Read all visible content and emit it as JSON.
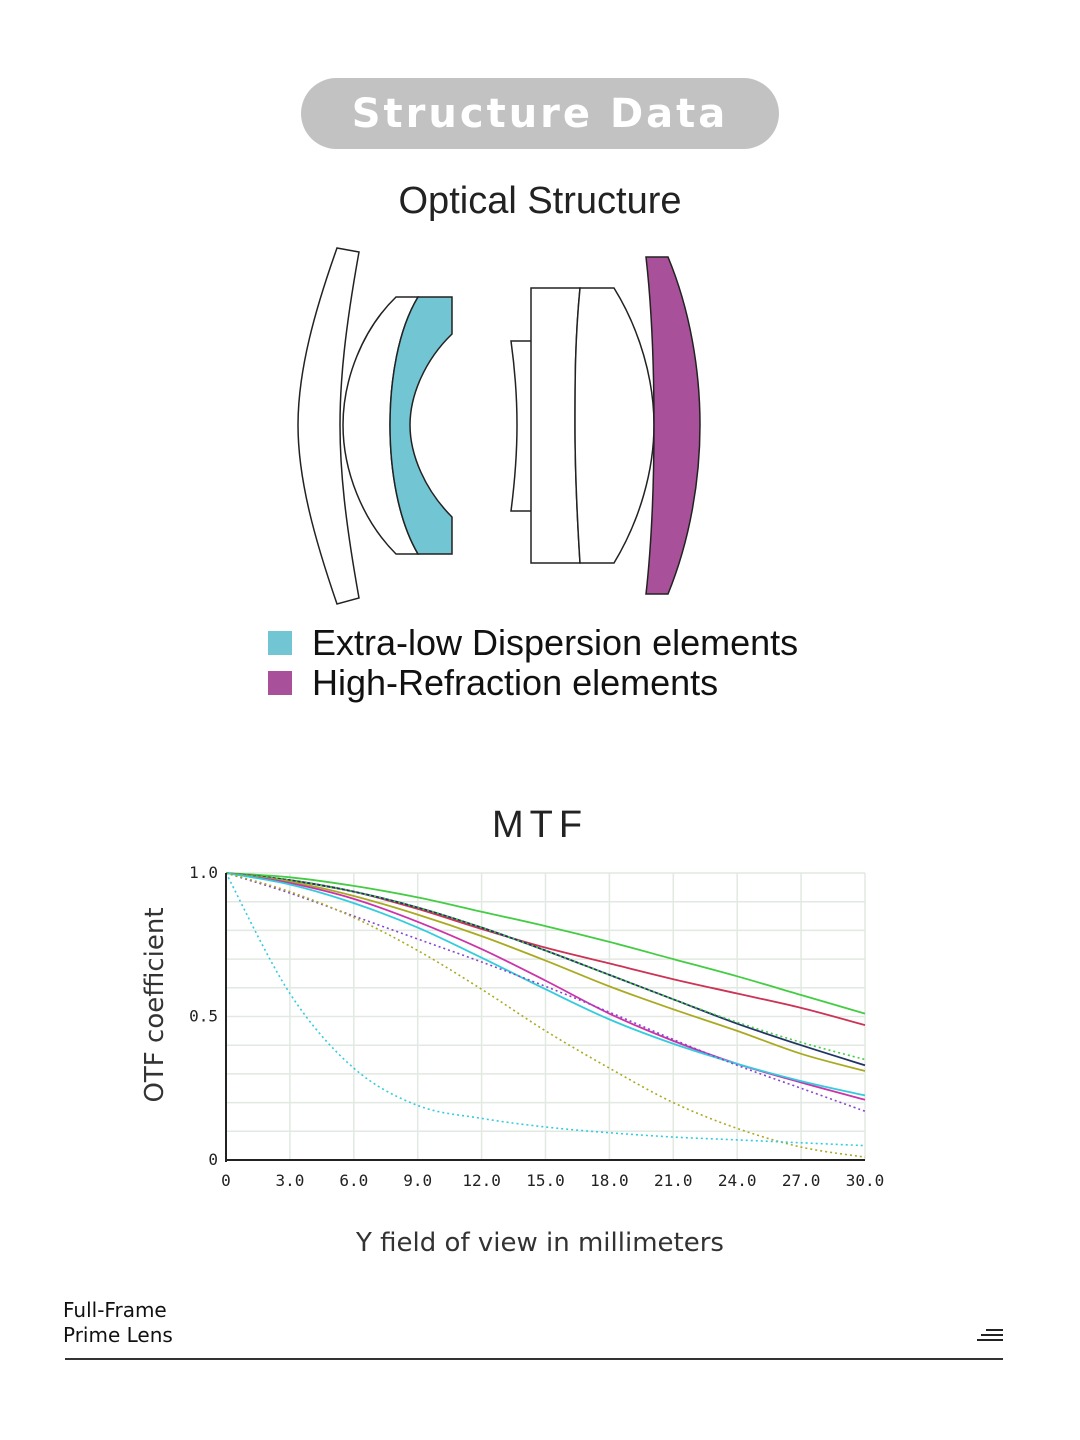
{
  "header": {
    "title": "Structure Data"
  },
  "optical": {
    "title": "Optical Structure",
    "legend": [
      {
        "label": "Extra-low Dispersion elements",
        "color": "#72c5d2"
      },
      {
        "label": "High-Refraction elements",
        "color": "#a8519a"
      }
    ]
  },
  "mtf": {
    "title": "MTF",
    "ylabel": "OTF coefficient",
    "xlabel": "Y field of view in millimeters"
  },
  "footer": {
    "line1": "Full-Frame",
    "line2": "Prime Lens",
    "icon": "menu-icon"
  },
  "chart_data": {
    "type": "line",
    "xlim": [
      0,
      30
    ],
    "ylim": [
      0,
      1
    ],
    "x_ticks": [
      "0",
      "3.0",
      "6.0",
      "9.0",
      "12.0",
      "15.0",
      "18.0",
      "21.0",
      "24.0",
      "27.0",
      "30.0"
    ],
    "y_ticks": [
      "0",
      "0.5",
      "1.0"
    ],
    "grid": true,
    "x": [
      0,
      3,
      6,
      9,
      12,
      15,
      18,
      21,
      24,
      27,
      30
    ],
    "series": [
      {
        "color": "#44cc44",
        "style": "solid",
        "values": [
          1.0,
          0.985,
          0.955,
          0.915,
          0.865,
          0.815,
          0.76,
          0.7,
          0.64,
          0.575,
          0.51
        ]
      },
      {
        "color": "#cc3355",
        "style": "solid",
        "values": [
          1.0,
          0.975,
          0.935,
          0.875,
          0.805,
          0.74,
          0.685,
          0.63,
          0.58,
          0.53,
          0.47
        ]
      },
      {
        "color": "#223366",
        "style": "solid",
        "values": [
          1.0,
          0.975,
          0.935,
          0.88,
          0.81,
          0.73,
          0.645,
          0.56,
          0.475,
          0.4,
          0.33
        ]
      },
      {
        "color": "#aaaa22",
        "style": "solid",
        "values": [
          1.0,
          0.97,
          0.92,
          0.855,
          0.78,
          0.695,
          0.605,
          0.525,
          0.45,
          0.37,
          0.31
        ]
      },
      {
        "color": "#cc33aa",
        "style": "solid",
        "values": [
          1.0,
          0.965,
          0.91,
          0.83,
          0.735,
          0.625,
          0.51,
          0.415,
          0.335,
          0.27,
          0.21
        ]
      },
      {
        "color": "#33ccdd",
        "style": "solid",
        "values": [
          1.0,
          0.96,
          0.895,
          0.81,
          0.705,
          0.595,
          0.49,
          0.405,
          0.335,
          0.275,
          0.225
        ]
      },
      {
        "color": "#8844cc",
        "style": "dotted",
        "values": [
          1.0,
          0.93,
          0.85,
          0.77,
          0.69,
          0.605,
          0.515,
          0.42,
          0.33,
          0.25,
          0.17
        ]
      },
      {
        "color": "#aaaa22",
        "style": "dotted",
        "values": [
          1.0,
          0.935,
          0.845,
          0.73,
          0.595,
          0.45,
          0.32,
          0.2,
          0.11,
          0.045,
          0.01
        ]
      },
      {
        "color": "#33ccdd",
        "style": "dotted",
        "values": [
          1.0,
          0.58,
          0.32,
          0.19,
          0.145,
          0.115,
          0.095,
          0.08,
          0.07,
          0.06,
          0.05
        ]
      },
      {
        "color": "#44cc44",
        "style": "dotted",
        "values": [
          1.0,
          0.975,
          0.935,
          0.88,
          0.81,
          0.73,
          0.645,
          0.56,
          0.48,
          0.41,
          0.35
        ]
      }
    ]
  }
}
